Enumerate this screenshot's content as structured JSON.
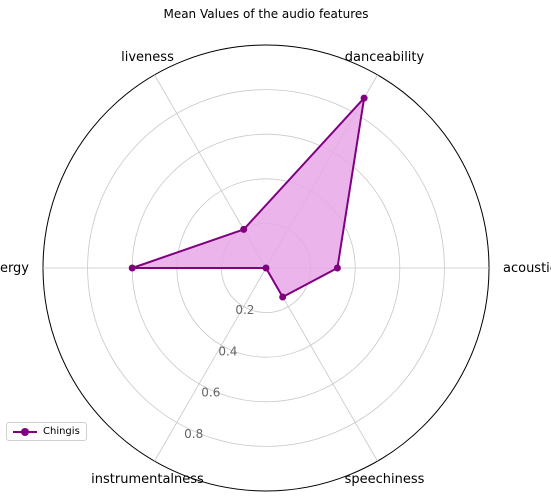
{
  "chart_data": {
    "type": "radar",
    "title": "Mean Values of the audio features",
    "categories": [
      "acousticness",
      "danceability",
      "liveness",
      "energy",
      "instrumentalness",
      "speechiness"
    ],
    "series": [
      {
        "name": "Chingis",
        "values": [
          0.32,
          0.88,
          0.2,
          0.6,
          0.0,
          0.15
        ]
      }
    ],
    "r_ticks": [
      "0.2",
      "0.4",
      "0.6",
      "0.8"
    ],
    "r_tick_values": [
      0.2,
      0.4,
      0.6,
      0.8
    ],
    "rlim": [
      0,
      1.0
    ],
    "grid": true,
    "legend_position": "lower-left",
    "colors": {
      "line": "#800080",
      "fill": "#e7a8e7",
      "grid": "#c8c8c8",
      "frame": "#000000"
    }
  }
}
